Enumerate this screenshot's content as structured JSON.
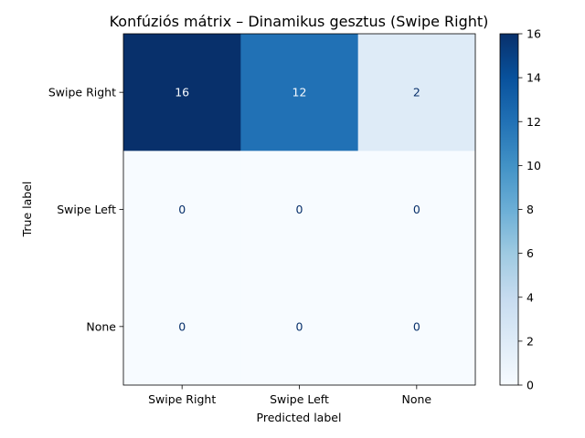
{
  "chart_data": {
    "type": "heatmap",
    "title": "Konfúziós mátrix – Dinamikus gesztus (Swipe Right)",
    "xlabel": "Predicted label",
    "ylabel": "True label",
    "x_categories": [
      "Swipe Right",
      "Swipe Left",
      "None"
    ],
    "y_categories": [
      "Swipe Right",
      "Swipe Left",
      "None"
    ],
    "values": [
      [
        16,
        12,
        2
      ],
      [
        0,
        0,
        0
      ],
      [
        0,
        0,
        0
      ]
    ],
    "colormap": "Blues",
    "color_range": [
      0,
      16
    ],
    "colorbar_ticks": [
      "0",
      "2",
      "4",
      "6",
      "8",
      "10",
      "12",
      "14",
      "16"
    ],
    "grid": false
  },
  "colors": {
    "low": "#f7fbff",
    "high": "#08306b",
    "text_dark": "#08306b",
    "text_light": "#f7fbff"
  }
}
